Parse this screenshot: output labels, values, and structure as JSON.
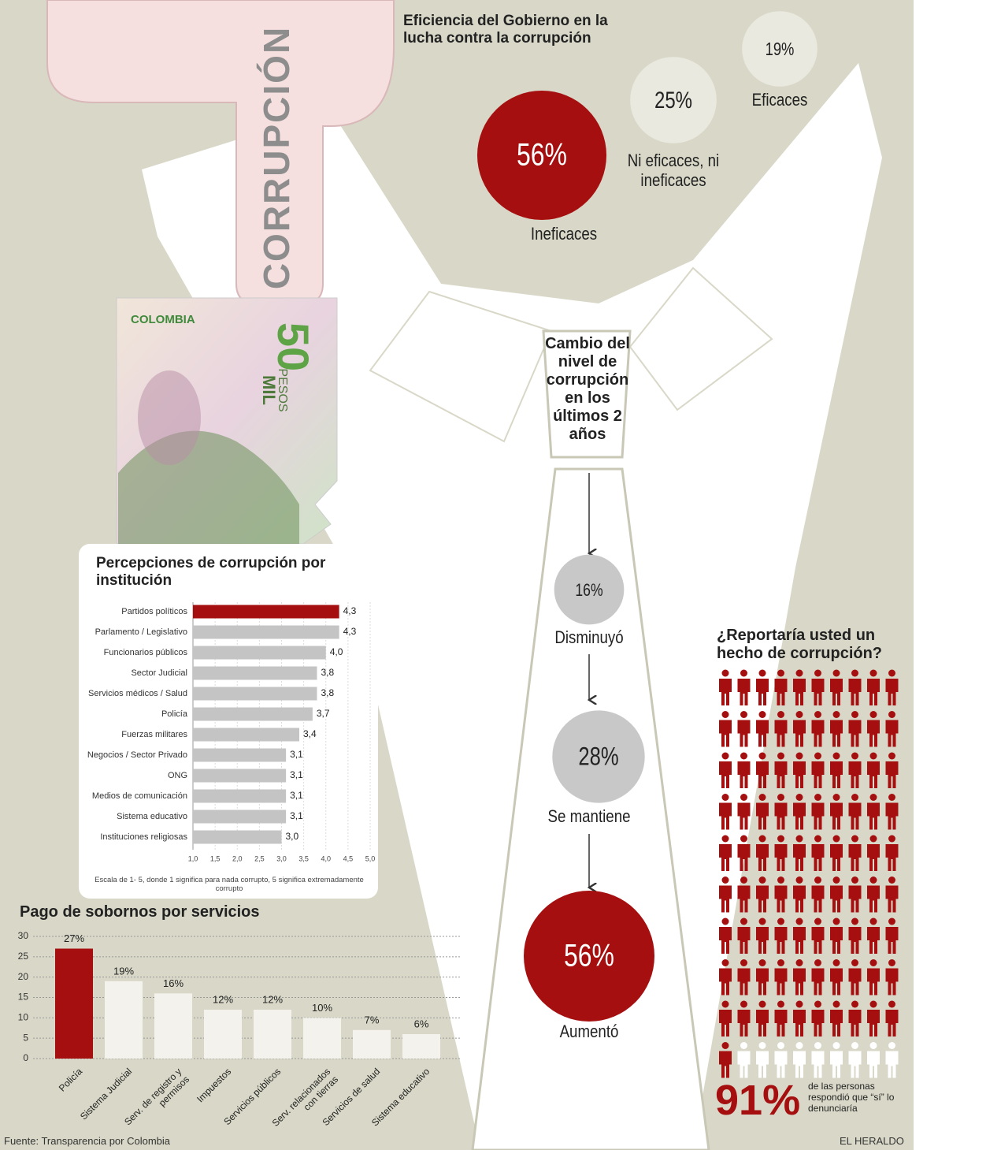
{
  "header_word": "CORRUPCIÓN",
  "banknote": {
    "country": "COLOMBIA",
    "denomination": "50",
    "unit": "MIL",
    "currency": "PESOS"
  },
  "source": "Fuente: Transparencia por Colombia",
  "credit": "EL HERALDO",
  "chart_data": [
    {
      "type": "bubble",
      "title": "Eficiencia del Gobierno en la lucha contra la corrupción",
      "categories": [
        "Ineficaces",
        "Ni eficaces, ni ineficaces",
        "Eficaces"
      ],
      "values": [
        56,
        25,
        19
      ],
      "value_labels": [
        "56%",
        "25%",
        "19%"
      ],
      "colors": [
        "#a50f0f",
        "#eae9df",
        "#eae9df"
      ]
    },
    {
      "type": "barh",
      "title": "Percepciones de corrupción por institución",
      "categories": [
        "Partidos políticos",
        "Parlamento / Legislativo",
        "Funcionarios públicos",
        "Sector Judicial",
        "Servicios médicos / Salud",
        "Policía",
        "Fuerzas militares",
        "Negocios / Sector Privado",
        "ONG",
        "Medios de comunicación",
        "Sistema educativo",
        "Instituciones religiosas"
      ],
      "values": [
        4.3,
        4.3,
        4.0,
        3.8,
        3.8,
        3.7,
        3.4,
        3.1,
        3.1,
        3.1,
        3.1,
        3.0
      ],
      "value_labels": [
        "4,3",
        "4,3",
        "4,0",
        "3,8",
        "3,8",
        "3,7",
        "3,4",
        "3,1",
        "3,1",
        "3,1",
        "3,1",
        "3,0"
      ],
      "colors": [
        "#a50f0f",
        "#c4c4c4",
        "#c4c4c4",
        "#c4c4c4",
        "#c4c4c4",
        "#c4c4c4",
        "#c4c4c4",
        "#c4c4c4",
        "#c4c4c4",
        "#c4c4c4",
        "#c4c4c4",
        "#c4c4c4"
      ],
      "xlim": [
        1,
        5
      ],
      "xticks": [
        {
          "value": 1,
          "label": "1,0"
        },
        {
          "value": 1.5,
          "label": "1,5"
        },
        {
          "value": 2,
          "label": "2,0"
        },
        {
          "value": 2.5,
          "label": "2,5"
        },
        {
          "value": 3,
          "label": "3,0"
        },
        {
          "value": 3.5,
          "label": "3,5"
        },
        {
          "value": 4,
          "label": "4,0"
        },
        {
          "value": 4.5,
          "label": "4,5"
        },
        {
          "value": 5,
          "label": "5,0"
        }
      ],
      "grid": true,
      "note": "Escala de 1- 5, donde 1 significa para nada corrupto, 5 significa extremadamente corrupto"
    },
    {
      "type": "bubble",
      "title": "Cambio del nivel de corrupción en los últimos 2 años",
      "categories": [
        "Disminuyó",
        "Se mantiene",
        "Aumentó"
      ],
      "values": [
        16,
        28,
        56
      ],
      "value_labels": [
        "16%",
        "28%",
        "56%"
      ],
      "colors": [
        "#c8c8c8",
        "#c8c8c8",
        "#a50f0f"
      ]
    },
    {
      "type": "bar",
      "title": "Pago de sobornos por servicios",
      "categories": [
        "Policía",
        "Sistema Judicial",
        "Serv. de registro y permisos",
        "Impuestos",
        "Servicios públicos",
        "Serv. relacionados con tierras",
        "Servicios de salud",
        "Sistema educativo"
      ],
      "values": [
        27,
        19,
        16,
        12,
        12,
        10,
        7,
        6
      ],
      "value_labels": [
        "27%",
        "19%",
        "16%",
        "12%",
        "12%",
        "10%",
        "7%",
        "6%"
      ],
      "colors": [
        "#a50f0f",
        "#f3f2ec",
        "#f3f2ec",
        "#f3f2ec",
        "#f3f2ec",
        "#f3f2ec",
        "#f3f2ec",
        "#f3f2ec"
      ],
      "ylim": [
        0,
        30
      ],
      "yticks": [
        0,
        5,
        10,
        15,
        20,
        25,
        30
      ],
      "grid": true
    },
    {
      "type": "pictogram",
      "title": "¿Reportaría usted un hecho de corrupción?",
      "values": [
        91
      ],
      "value_labels": [
        "91%"
      ],
      "note": "de las personas respondió que “sí” lo denunciaría",
      "color": "#a50f0f",
      "empty_color": "#ffffff"
    }
  ]
}
